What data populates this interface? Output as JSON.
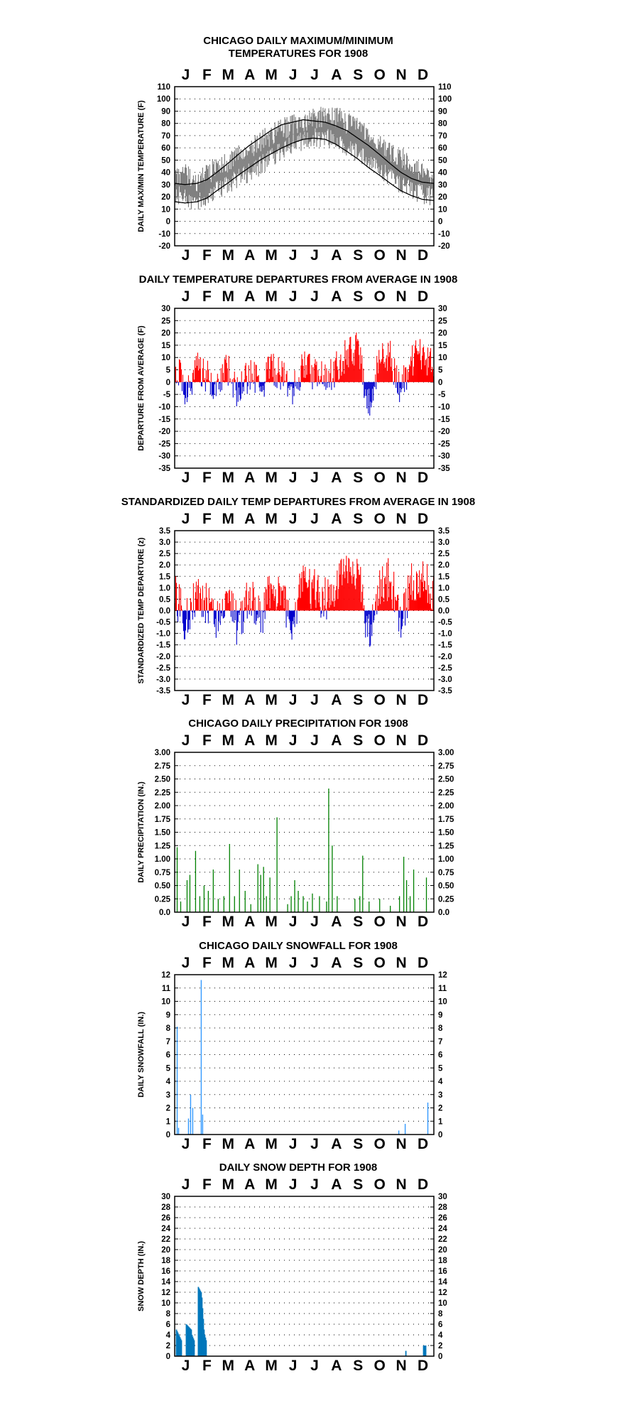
{
  "colors": {
    "temp_band": "#808080",
    "normal_line": "#000000",
    "above_average": "#ff0000",
    "below_average": "#0000cc",
    "precipitation": "#008000",
    "snowfall": "#3399ff",
    "snow_depth": "#0077bb"
  },
  "chart_data": [
    {
      "type": "line",
      "title_lines": [
        "CHICAGO DAILY MAXIMUM/MINIMUM",
        "TEMPERATURES FOR 1908"
      ],
      "ylabel": "DAILY MAX/MIN TEMPERATURE (F)",
      "months": [
        "J",
        "F",
        "M",
        "A",
        "M",
        "J",
        "J",
        "A",
        "S",
        "O",
        "N",
        "D"
      ],
      "ylim": [
        -20,
        110
      ],
      "ytick_step": 10,
      "ticks": [
        "-20",
        "-10",
        "0",
        "10",
        "20",
        "30",
        "40",
        "50",
        "60",
        "70",
        "80",
        "90",
        "100",
        "110"
      ],
      "grid": true,
      "x_anchor_days": [
        1,
        15,
        32,
        46,
        60,
        75,
        91,
        106,
        121,
        136,
        152,
        167,
        182,
        197,
        213,
        228,
        244,
        259,
        274,
        289,
        305,
        320,
        335,
        350,
        366
      ],
      "observed_max_anchors": [
        38,
        40,
        32,
        38,
        45,
        48,
        55,
        60,
        65,
        70,
        75,
        80,
        82,
        84,
        85,
        86,
        80,
        76,
        70,
        66,
        58,
        52,
        45,
        40,
        36
      ],
      "observed_min_anchors": [
        22,
        20,
        15,
        20,
        26,
        30,
        35,
        40,
        45,
        52,
        58,
        63,
        66,
        68,
        68,
        67,
        60,
        55,
        48,
        44,
        36,
        30,
        25,
        22,
        20
      ],
      "normal_max_anchors": [
        31,
        30,
        31,
        34,
        40,
        47,
        55,
        62,
        68,
        74,
        79,
        81,
        83,
        82,
        81,
        78,
        74,
        68,
        62,
        55,
        47,
        40,
        35,
        32,
        31
      ],
      "normal_min_anchors": [
        16,
        15,
        16,
        19,
        25,
        31,
        38,
        44,
        50,
        55,
        60,
        64,
        67,
        68,
        67,
        63,
        57,
        51,
        44,
        38,
        31,
        25,
        21,
        18,
        17
      ]
    },
    {
      "type": "bar",
      "title": "DAILY TEMPERATURE DEPARTURES FROM AVERAGE IN 1908",
      "ylabel": "DEPARTURE FROM AVERAGE (F)",
      "months": [
        "J",
        "F",
        "M",
        "A",
        "M",
        "J",
        "J",
        "A",
        "S",
        "O",
        "N",
        "D"
      ],
      "ylim": [
        -35,
        30
      ],
      "ytick_step": 5,
      "ticks": [
        "-35",
        "-30",
        "-25",
        "-20",
        "-15",
        "-10",
        "-5",
        "0",
        "5",
        "10",
        "15",
        "20",
        "25",
        "30"
      ],
      "grid": true,
      "departure_anchors": {
        "days": [
          1,
          15,
          32,
          46,
          60,
          75,
          91,
          106,
          121,
          136,
          152,
          167,
          182,
          197,
          213,
          228,
          244,
          259,
          274,
          289,
          305,
          320,
          335,
          350,
          366
        ],
        "values": [
          8,
          -4,
          6,
          2,
          -3,
          5,
          -5,
          4,
          -2,
          6,
          3,
          -2,
          6,
          4,
          2,
          5,
          12,
          14,
          -10,
          8,
          10,
          -3,
          9,
          12,
          6
        ]
      },
      "positive_color": "#ff0000",
      "negative_color": "#0000cc"
    },
    {
      "type": "bar",
      "title": "STANDARDIZED DAILY TEMP DEPARTURES FROM AVERAGE IN 1908",
      "ylabel": "STANDARDIZED TEMP DEPARTURE (z)",
      "months": [
        "J",
        "F",
        "M",
        "A",
        "M",
        "J",
        "J",
        "A",
        "S",
        "O",
        "N",
        "D"
      ],
      "ylim": [
        -3.5,
        3.5
      ],
      "ytick_step": 0.5,
      "ticks": [
        "-3.5",
        "-3.0",
        "-2.5",
        "-2.0",
        "-1.5",
        "-1.0",
        "-0.5",
        "0.0",
        "0.5",
        "1.0",
        "1.5",
        "2.0",
        "2.5",
        "3.0",
        "3.5"
      ],
      "grid": true,
      "departure_anchors": {
        "days": [
          1,
          15,
          32,
          46,
          60,
          75,
          91,
          106,
          121,
          136,
          152,
          167,
          182,
          197,
          213,
          228,
          244,
          259,
          274,
          289,
          305,
          320,
          335,
          350,
          366
        ],
        "values": [
          0.8,
          -0.5,
          0.7,
          0.3,
          -0.4,
          0.6,
          -0.8,
          0.7,
          -0.4,
          1.0,
          0.6,
          -0.4,
          1.2,
          0.9,
          0.5,
          1.0,
          1.7,
          1.9,
          -1.2,
          1.2,
          1.4,
          -0.5,
          1.2,
          1.6,
          0.8
        ]
      },
      "positive_color": "#ff0000",
      "negative_color": "#0000cc"
    },
    {
      "type": "bar",
      "title": "CHICAGO DAILY PRECIPITATION FOR 1908",
      "ylabel": "DAILY PRECIPITATION (IN.)",
      "months": [
        "J",
        "F",
        "M",
        "A",
        "M",
        "J",
        "J",
        "A",
        "S",
        "O",
        "N",
        "D"
      ],
      "ylim": [
        0,
        3
      ],
      "ytick_step": 0.25,
      "ticks": [
        "0.0",
        "0.25",
        "0.50",
        "0.75",
        "1.00",
        "1.25",
        "1.50",
        "1.75",
        "2.00",
        "2.25",
        "2.50",
        "2.75",
        "3.00"
      ],
      "grid": true,
      "bars": [
        [
          4,
          1.22
        ],
        [
          9,
          0.2
        ],
        [
          18,
          0.6
        ],
        [
          22,
          0.7
        ],
        [
          30,
          1.15
        ],
        [
          36,
          0.3
        ],
        [
          42,
          0.5
        ],
        [
          48,
          0.4
        ],
        [
          55,
          0.8
        ],
        [
          62,
          0.25
        ],
        [
          70,
          0.3
        ],
        [
          78,
          1.28
        ],
        [
          85,
          0.3
        ],
        [
          92,
          0.8
        ],
        [
          100,
          0.4
        ],
        [
          108,
          0.15
        ],
        [
          118,
          0.9
        ],
        [
          122,
          0.7
        ],
        [
          126,
          0.85
        ],
        [
          130,
          0.3
        ],
        [
          135,
          0.65
        ],
        [
          145,
          1.78
        ],
        [
          160,
          0.15
        ],
        [
          165,
          0.3
        ],
        [
          170,
          0.6
        ],
        [
          175,
          0.4
        ],
        [
          182,
          0.3
        ],
        [
          188,
          0.2
        ],
        [
          195,
          0.35
        ],
        [
          205,
          0.3
        ],
        [
          215,
          0.2
        ],
        [
          218,
          2.32
        ],
        [
          223,
          1.25
        ],
        [
          230,
          0.3
        ],
        [
          255,
          0.25
        ],
        [
          262,
          0.3
        ],
        [
          266,
          1.06
        ],
        [
          275,
          0.2
        ],
        [
          290,
          0.25
        ],
        [
          305,
          0.12
        ],
        [
          318,
          0.3
        ],
        [
          324,
          1.04
        ],
        [
          328,
          0.6
        ],
        [
          333,
          0.3
        ],
        [
          338,
          0.8
        ],
        [
          356,
          0.65
        ]
      ]
    },
    {
      "type": "bar",
      "title": "CHICAGO DAILY SNOWFALL FOR 1908",
      "ylabel": "DAILY SNOWFALL (IN.)",
      "months": [
        "J",
        "F",
        "M",
        "A",
        "M",
        "J",
        "J",
        "A",
        "S",
        "O",
        "N",
        "D"
      ],
      "ylim": [
        0,
        12
      ],
      "ytick_step": 1,
      "ticks": [
        "0",
        "1",
        "2",
        "3",
        "4",
        "5",
        "6",
        "7",
        "8",
        "9",
        "10",
        "11",
        "12"
      ],
      "grid": true,
      "bars": [
        [
          4,
          8.1
        ],
        [
          6,
          0.5
        ],
        [
          20,
          1.2
        ],
        [
          23,
          3.0
        ],
        [
          26,
          2.0
        ],
        [
          38,
          11.6
        ],
        [
          40,
          1.5
        ],
        [
          317,
          0.3
        ],
        [
          326,
          0.8
        ],
        [
          358,
          2.4
        ]
      ]
    },
    {
      "type": "bar",
      "title": "DAILY SNOW DEPTH FOR 1908",
      "ylabel": "SNOW DEPTH (IN.)",
      "months": [
        "J",
        "F",
        "M",
        "A",
        "M",
        "J",
        "J",
        "A",
        "S",
        "O",
        "N",
        "D"
      ],
      "ylim": [
        0,
        30
      ],
      "ytick_step": 2,
      "ticks": [
        "0",
        "2",
        "4",
        "6",
        "8",
        "10",
        "12",
        "14",
        "16",
        "18",
        "20",
        "22",
        "24",
        "26",
        "28",
        "30"
      ],
      "grid": true,
      "spans": [
        [
          3,
          10,
          5,
          3
        ],
        [
          17,
          24,
          6,
          5
        ],
        [
          25,
          28,
          4,
          3
        ],
        [
          34,
          38,
          13,
          12
        ],
        [
          39,
          42,
          11,
          5
        ],
        [
          43,
          45,
          4,
          3
        ],
        [
          327,
          327,
          1,
          1
        ],
        [
          352,
          355,
          2,
          2
        ]
      ]
    }
  ]
}
